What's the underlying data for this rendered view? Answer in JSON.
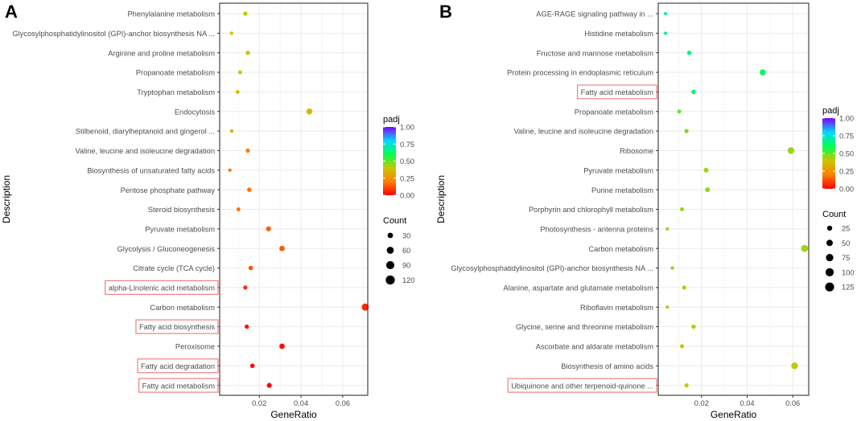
{
  "colors": {
    "background": "#ffffff",
    "grid": "#ebebeb",
    "axis": "#333333",
    "highlight": "#f08080",
    "text": "#4d4d4d"
  },
  "gradient_stops": [
    "#ff0000",
    "#ff8000",
    "#c8c800",
    "#00ff50",
    "#00d8ff",
    "#7f00ff"
  ],
  "chart_data": [
    {
      "panel": "A",
      "type": "scatter",
      "xlabel": "GeneRatio",
      "ylabel": "Description",
      "xlim": [
        0.001,
        0.072
      ],
      "xticks": [
        0.02,
        0.04,
        0.06
      ],
      "xtick_labels": [
        "0.02",
        "0.04",
        "0.06"
      ],
      "legend_color": {
        "title": "padj",
        "range": [
          0,
          1
        ],
        "ticks": [
          1.0,
          0.75,
          0.5,
          0.25,
          0.0
        ],
        "tick_labels": [
          "1.00",
          "0.75",
          "0.50",
          "0.25",
          "0.00"
        ]
      },
      "legend_size": {
        "title": "Count",
        "values": [
          30,
          60,
          90,
          120
        ],
        "labels": [
          "30",
          "60",
          "90",
          "120"
        ]
      },
      "terms": [
        {
          "label": "Phenylalanine metabolism",
          "x": 0.0133,
          "padj": 0.42,
          "count": 12,
          "highlight": false
        },
        {
          "label": "Glycosylphosphatidylinositol (GPI)-anchor biosynthesis NA ...",
          "x": 0.0067,
          "padj": 0.4,
          "count": 6,
          "highlight": false
        },
        {
          "label": "Arginine and proline metabolism",
          "x": 0.0145,
          "padj": 0.4,
          "count": 13,
          "highlight": false
        },
        {
          "label": "Propanoate metabolism",
          "x": 0.0108,
          "padj": 0.38,
          "count": 10,
          "highlight": false
        },
        {
          "label": "Tryptophan metabolism",
          "x": 0.0096,
          "padj": 0.38,
          "count": 9,
          "highlight": false
        },
        {
          "label": "Endocytosis",
          "x": 0.044,
          "padj": 0.36,
          "count": 40,
          "highlight": false
        },
        {
          "label": "Stilbenoid, diarylheptanoid and gingerol ...",
          "x": 0.0068,
          "padj": 0.35,
          "count": 6,
          "highlight": false
        },
        {
          "label": "Valine, leucine and isoleucine degradation",
          "x": 0.0145,
          "padj": 0.19,
          "count": 13,
          "highlight": false
        },
        {
          "label": "Biosynthesis of unsaturated fatty acids",
          "x": 0.0059,
          "padj": 0.18,
          "count": 5,
          "highlight": false
        },
        {
          "label": "Pentose phosphate pathway",
          "x": 0.0152,
          "padj": 0.18,
          "count": 14,
          "highlight": false
        },
        {
          "label": "Steroid biosynthesis",
          "x": 0.01,
          "padj": 0.17,
          "count": 9,
          "highlight": false
        },
        {
          "label": "Pyruvate metabolism",
          "x": 0.0244,
          "padj": 0.15,
          "count": 22,
          "highlight": false
        },
        {
          "label": "Glycolysis / Gluconeogenesis",
          "x": 0.0309,
          "padj": 0.14,
          "count": 28,
          "highlight": false
        },
        {
          "label": "Citrate cycle (TCA cycle)",
          "x": 0.0159,
          "padj": 0.13,
          "count": 15,
          "highlight": false
        },
        {
          "label": "alpha-Linolenic acid metabolism",
          "x": 0.0133,
          "padj": 0.07,
          "count": 12,
          "highlight": true
        },
        {
          "label": "Carbon metabolism",
          "x": 0.0708,
          "padj": 0.06,
          "count": 64,
          "highlight": false
        },
        {
          "label": "Fatty acid biosynthesis",
          "x": 0.014,
          "padj": 0.03,
          "count": 13,
          "highlight": true
        },
        {
          "label": "Peroxisome",
          "x": 0.0309,
          "padj": 0.02,
          "count": 28,
          "highlight": false
        },
        {
          "label": "Fatty acid degradation",
          "x": 0.0167,
          "padj": 0.01,
          "count": 15,
          "highlight": true
        },
        {
          "label": "Fatty acid metabolism",
          "x": 0.0248,
          "padj": 0.005,
          "count": 22,
          "highlight": true
        }
      ]
    },
    {
      "panel": "B",
      "type": "scatter",
      "xlabel": "GeneRatio",
      "ylabel": "Description",
      "xlim": [
        0.001,
        0.067
      ],
      "xticks": [
        0.02,
        0.04,
        0.06
      ],
      "xtick_labels": [
        "0.02",
        "0.04",
        "0.06"
      ],
      "legend_color": {
        "title": "padj",
        "range": [
          0,
          1
        ],
        "ticks": [
          1.0,
          0.75,
          0.5,
          0.25,
          0.0
        ],
        "tick_labels": [
          "1.00",
          "0.75",
          "0.50",
          "0.25",
          "0.00"
        ]
      },
      "legend_size": {
        "title": "Count",
        "values": [
          25,
          50,
          75,
          100,
          125
        ],
        "labels": [
          "25",
          "50",
          "75",
          "100",
          "125"
        ]
      },
      "terms": [
        {
          "label": "AGE-RAGE signaling pathway in ...",
          "x": 0.0042,
          "padj": 0.7,
          "count": 4,
          "highlight": false
        },
        {
          "label": "Histidine metabolism",
          "x": 0.0042,
          "padj": 0.7,
          "count": 4,
          "highlight": false
        },
        {
          "label": "Fructose and mannose metabolism",
          "x": 0.0146,
          "padj": 0.65,
          "count": 14,
          "highlight": false
        },
        {
          "label": "Protein processing in endoplasmic reticulum",
          "x": 0.0468,
          "padj": 0.62,
          "count": 45,
          "highlight": false
        },
        {
          "label": "Fatty acid metabolism",
          "x": 0.0165,
          "padj": 0.62,
          "count": 16,
          "highlight": true
        },
        {
          "label": "Propanoate metabolism",
          "x": 0.0102,
          "padj": 0.52,
          "count": 10,
          "highlight": false
        },
        {
          "label": "Valine, leucine and isoleucine degradation",
          "x": 0.0134,
          "padj": 0.48,
          "count": 13,
          "highlight": false
        },
        {
          "label": "Ribosome",
          "x": 0.0592,
          "padj": 0.45,
          "count": 57,
          "highlight": false
        },
        {
          "label": "Pyruvate metabolism",
          "x": 0.022,
          "padj": 0.45,
          "count": 21,
          "highlight": false
        },
        {
          "label": "Purine metabolism",
          "x": 0.0226,
          "padj": 0.45,
          "count": 22,
          "highlight": false
        },
        {
          "label": "Porphyrin and chlorophyll metabolism",
          "x": 0.0114,
          "padj": 0.45,
          "count": 11,
          "highlight": false
        },
        {
          "label": "Photosynthesis - antenna proteins",
          "x": 0.005,
          "padj": 0.44,
          "count": 5,
          "highlight": false
        },
        {
          "label": "Carbon metabolism",
          "x": 0.0652,
          "padj": 0.44,
          "count": 63,
          "highlight": false
        },
        {
          "label": "Glycosylphosphatidylinositol (GPI)-anchor biosynthesis NA ...",
          "x": 0.0072,
          "padj": 0.44,
          "count": 7,
          "highlight": false
        },
        {
          "label": "Alanine, aspartate and glutamate metabolism",
          "x": 0.0124,
          "padj": 0.43,
          "count": 12,
          "highlight": false
        },
        {
          "label": "Riboflavin metabolism",
          "x": 0.005,
          "padj": 0.43,
          "count": 5,
          "highlight": false
        },
        {
          "label": "Glycine, serine and threonine metabolism",
          "x": 0.0165,
          "padj": 0.42,
          "count": 16,
          "highlight": false
        },
        {
          "label": "Ascorbate and aldarate metabolism",
          "x": 0.0114,
          "padj": 0.42,
          "count": 11,
          "highlight": false
        },
        {
          "label": "Biosynthesis of amino acids",
          "x": 0.0608,
          "padj": 0.41,
          "count": 59,
          "highlight": false
        },
        {
          "label": "Ubiquinone and other terpenoid-quinone ...",
          "x": 0.0134,
          "padj": 0.4,
          "count": 13,
          "highlight": true
        }
      ]
    }
  ]
}
